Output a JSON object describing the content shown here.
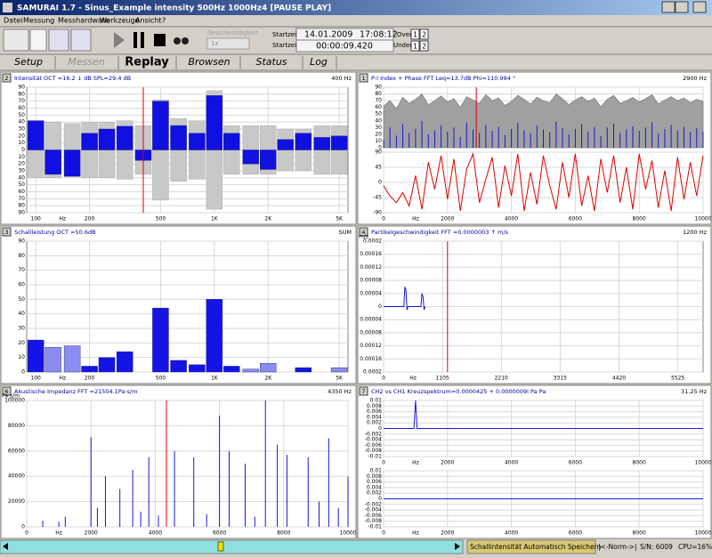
{
  "window_title": "SAMURAI 1.7 - Sinus_Example intensity 500Hz 1000Hz4 [PAUSE PLAY]",
  "menu": [
    "Datei",
    "Messung",
    "Messhardware",
    "Werkzeuge",
    "Ansicht",
    "?"
  ],
  "toolbar": {
    "speed_label": "Geschwindigkeit",
    "speed": "1x",
    "start_label": "Startzeit",
    "start_date": "14.01.2009",
    "start_time": "17:08:12",
    "elapsed_label": "Startzeit",
    "elapsed": "00:00:09.420",
    "over": {
      "label": "Over",
      "buttons": [
        "1",
        "2"
      ]
    },
    "under": {
      "label": "Under",
      "buttons": [
        "1",
        "2"
      ]
    }
  },
  "tabs": [
    "Setup",
    "Messen",
    "Replay",
    "Browsen",
    "Status",
    "Log"
  ],
  "active_tab": 2,
  "disabled_tab": 1,
  "panels": [
    {
      "number": "2",
      "title": "Intensität OCT =16.2 ↓ dB SPL=29.4 dB",
      "right_label": "400 Hz",
      "charts": [
        {
          "type": "bar",
          "xlog": true,
          "xlim": [
            89,
            5600
          ],
          "xticks": [
            100,
            200,
            500,
            {
              "value": 1000,
              "label": "1K"
            },
            {
              "value": 2000,
              "label": "2K"
            },
            {
              "value": 5000,
              "label": "5K"
            }
          ],
          "x_unit": "Hz",
          "ylim": [
            -90,
            90
          ],
          "yticks": [
            90,
            80,
            70,
            60,
            50,
            40,
            30,
            20,
            10,
            0,
            {
              "value": -10,
              "label": "10"
            },
            {
              "value": -20,
              "label": "20"
            },
            {
              "value": -30,
              "label": "30"
            },
            {
              "value": -40,
              "label": "40"
            },
            {
              "value": -50,
              "label": "50"
            },
            {
              "value": -60,
              "label": "60"
            },
            {
              "value": -70,
              "label": "70"
            },
            {
              "value": -80,
              "label": "80"
            },
            {
              "value": -90,
              "label": "90"
            }
          ],
          "grid": true,
          "cursor": 400,
          "x": [
            100,
            125,
            160,
            200,
            250,
            315,
            400,
            500,
            630,
            800,
            1000,
            1250,
            1600,
            2000,
            2500,
            3150,
            4000,
            5000
          ],
          "series": [
            {
              "style": "symmetric_bars",
              "color": "#c8c8c8",
              "values": [
                40,
                40,
                38,
                40,
                40,
                42,
                35,
                72,
                45,
                42,
                85,
                35,
                35,
                35,
                30,
                30,
                35,
                35
              ]
            },
            {
              "style": "bars",
              "color": "#1010e0",
              "values": [
                42,
                -35,
                -38,
                24,
                30,
                34,
                -15,
                70,
                35,
                24,
                78,
                24,
                -20,
                -28,
                15,
                24,
                18,
                20
              ]
            }
          ]
        }
      ]
    },
    {
      "number": "1",
      "title": "P-I Index + Phase FFT  Leq=13.7dB Phi=110.994 °",
      "right_label": "2900 Hz",
      "charts": [
        {
          "type": "line",
          "xlim": [
            0,
            10000
          ],
          "xticks": [
            0,
            2000,
            4000,
            6000,
            8000,
            10000
          ],
          "show_xticks": false,
          "ylim": [
            0,
            90
          ],
          "yticks": [
            90,
            80,
            70,
            60,
            50,
            40,
            30,
            20,
            10,
            0
          ],
          "grid": true,
          "cursor": 2900,
          "x": [
            0,
            200,
            400,
            600,
            800,
            1000,
            1200,
            1400,
            1600,
            1800,
            2000,
            2200,
            2400,
            2600,
            2800,
            3000,
            3200,
            3400,
            3600,
            3800,
            4000,
            4200,
            4400,
            4600,
            4800,
            5000,
            5200,
            5400,
            5600,
            5800,
            6000,
            6200,
            6400,
            6600,
            6800,
            7000,
            7200,
            7400,
            7600,
            7800,
            8000,
            8200,
            8400,
            8600,
            8800,
            9000,
            9200,
            9400,
            9600,
            9800,
            10000
          ],
          "series": [
            {
              "style": "area",
              "color": "#a0a0a0",
              "values": [
                62,
                70,
                58,
                75,
                66,
                72,
                80,
                64,
                70,
                77,
                68,
                73,
                60,
                76,
                71,
                66,
                79,
                70,
                74,
                63,
                69,
                78,
                72,
                65,
                75,
                70,
                67,
                80,
                73,
                64,
                71,
                76,
                69,
                74,
                61,
                72,
                78,
                66,
                70,
                75,
                68,
                73,
                79,
                65,
                71,
                76,
                70,
                74,
                67,
                72,
                69
              ]
            },
            {
              "style": "stems",
              "color": "#1818d8",
              "values": [
                12,
                30,
                18,
                35,
                22,
                28,
                40,
                20,
                26,
                33,
                24,
                30,
                16,
                38,
                27,
                22,
                34,
                25,
                31,
                19,
                28,
                37,
                26,
                21,
                33,
                27,
                23,
                39,
                29,
                20,
                28,
                35,
                24,
                31,
                17,
                30,
                36,
                22,
                27,
                32,
                25,
                30,
                38,
                21,
                28,
                34,
                26,
                31,
                23,
                29,
                24
              ]
            }
          ]
        },
        {
          "type": "line",
          "xlim": [
            0,
            10000
          ],
          "xticks": [
            0,
            2000,
            4000,
            6000,
            8000,
            10000
          ],
          "x_unit": "Hz",
          "ylim": [
            -90,
            90
          ],
          "yticks": [
            90,
            45,
            0,
            -45,
            -90
          ],
          "grid": true,
          "x": [
            0,
            200,
            400,
            600,
            800,
            1000,
            1200,
            1400,
            1600,
            1800,
            2000,
            2200,
            2400,
            2600,
            2800,
            3000,
            3200,
            3400,
            3600,
            3800,
            4000,
            4200,
            4400,
            4600,
            4800,
            5000,
            5200,
            5400,
            5600,
            5800,
            6000,
            6200,
            6400,
            6600,
            6800,
            7000,
            7200,
            7400,
            7600,
            7800,
            8000,
            8200,
            8400,
            8600,
            8800,
            9000,
            9200,
            9400,
            9600,
            9800,
            10000
          ],
          "series": [
            {
              "style": "line",
              "color": "#e00000",
              "values": [
                -10,
                -40,
                -60,
                -30,
                -70,
                20,
                -80,
                60,
                -20,
                80,
                -50,
                70,
                -85,
                40,
                85,
                -60,
                10,
                75,
                -75,
                50,
                -40,
                85,
                -85,
                30,
                -65,
                80,
                -10,
                -80,
                60,
                -45,
                85,
                -70,
                20,
                -85,
                70,
                -30,
                80,
                -60,
                45,
                -80,
                85,
                -20,
                65,
                -75,
                35,
                -85,
                75,
                -50,
                60,
                -40,
                80
              ]
            }
          ]
        }
      ]
    },
    {
      "number": "3",
      "title": "Schallleistung OCT =50.6dB",
      "right_label": "SUM",
      "charts": [
        {
          "type": "bar",
          "xlog": true,
          "xlim": [
            89,
            5600
          ],
          "xticks": [
            100,
            200,
            500,
            {
              "value": 1000,
              "label": "1K"
            },
            {
              "value": 2000,
              "label": "2K"
            },
            {
              "value": 5000,
              "label": "5K"
            }
          ],
          "x_unit": "Hz",
          "ylim": [
            0,
            90
          ],
          "yticks": [
            0,
            10,
            20,
            30,
            40,
            50,
            60,
            70,
            80,
            90
          ],
          "grid": true,
          "x": [
            100,
            125,
            160,
            200,
            250,
            315,
            400,
            500,
            630,
            800,
            1000,
            1250,
            1600,
            2000,
            2500,
            3150,
            4000,
            5000
          ],
          "series": [
            {
              "style": "bars",
              "values": [
                22,
                17,
                18,
                4,
                10,
                14,
                0,
                44,
                8,
                5,
                50,
                4,
                2,
                6,
                0,
                3,
                0,
                3
              ],
              "colors": [
                "#1414e6",
                "#8c8cf0",
                "#8c8cf0",
                "#1414e6",
                "#1414e6",
                "#1414e6",
                "#1414e6",
                "#1414e6",
                "#1414e6",
                "#1414e6",
                "#1414e6",
                "#1414e6",
                "#8c8cf0",
                "#8c8cf0",
                "#1414e6",
                "#1414e6",
                "#1414e6",
                "#8c8cf0"
              ]
            }
          ]
        }
      ]
    },
    {
      "number": "4",
      "title": "Partikelgeschwindigkeit FFT =0.0000003 ↑ m/s",
      "right_label": "1200 Hz",
      "charts": [
        {
          "type": "line",
          "xlim": [
            0,
            6000
          ],
          "xticks": [
            0,
            1105,
            2210,
            3315,
            4420,
            5525
          ],
          "x_unit": "Hz",
          "y_unit": "m/s",
          "ylim": [
            -0.0002,
            0.0002
          ],
          "yticks": [
            0.0002,
            0.00016,
            0.00012,
            8e-05,
            4e-05,
            0,
            {
              "value": -4e-05,
              "label": "0.00004"
            },
            {
              "value": -8e-05,
              "label": "0.00008"
            },
            {
              "value": -0.00012,
              "label": "0.00012"
            },
            {
              "value": -0.00016,
              "label": "0.00016"
            },
            {
              "value": -0.0002,
              "label": "0.0002"
            }
          ],
          "grid": true,
          "cursor": 1200,
          "x": [
            0,
            100,
            200,
            300,
            380,
            400,
            420,
            440,
            460,
            480,
            700,
            720,
            740,
            760,
            780
          ],
          "series": [
            {
              "style": "line",
              "color": "#1818d8",
              "values": [
                0,
                0,
                0,
                0,
                0,
                6e-05,
                5e-05,
                -1e-05,
                0,
                0,
                0,
                4e-05,
                3e-05,
                -1e-05,
                0
              ]
            }
          ]
        }
      ]
    },
    {
      "number": "6",
      "title": "Akustische Impedanz FFT =21504.1Pa·s/m",
      "right_label": "4350 Hz",
      "charts": [
        {
          "type": "line",
          "xlim": [
            0,
            10000
          ],
          "xticks": [
            0,
            2000,
            4000,
            6000,
            8000,
            10000
          ],
          "x_unit": "Hz",
          "y_unit": "Pa·s/m",
          "ylim": [
            0,
            100000
          ],
          "yticks": [
            0,
            20000,
            40000,
            60000,
            80000,
            100000
          ],
          "grid": true,
          "cursor": 4350,
          "x": [
            500,
            1000,
            1200,
            2000,
            2200,
            2450,
            2900,
            3300,
            3550,
            3800,
            4100,
            4600,
            5200,
            5600,
            6000,
            6300,
            6800,
            7100,
            7430,
            7800,
            8100,
            8760,
            9100,
            9400,
            9700,
            10000
          ],
          "series": [
            {
              "style": "stems",
              "color": "#1818d8",
              "values": [
                5000,
                4000,
                8000,
                71000,
                15000,
                40000,
                30000,
                45000,
                12000,
                55000,
                9000,
                60000,
                55000,
                10000,
                88000,
                60000,
                50000,
                8000,
                100000,
                65000,
                57000,
                55000,
                20000,
                70000,
                15000,
                40000
              ]
            }
          ]
        }
      ]
    },
    {
      "number": "7",
      "title": "CH2 vs CH1 Kreuzspektrum=0.0000425 + 0.0000009i Pa Pa",
      "right_label": "31.25 Hz",
      "charts": [
        {
          "type": "line",
          "xlim": [
            0,
            10000
          ],
          "xticks": [
            0,
            2000,
            4000,
            6000,
            8000,
            10000
          ],
          "x_unit": "Hz",
          "ylim": [
            -0.01,
            0.01
          ],
          "yticks": [
            0.01,
            0.008,
            0.006,
            0.004,
            0.002,
            0,
            -0.002,
            -0.004,
            -0.006,
            -0.008,
            -0.01
          ],
          "grid": true,
          "x": [
            0,
            800,
            950,
            1000,
            1050,
            1200,
            10000
          ],
          "series": [
            {
              "style": "line",
              "color": "#1818d8",
              "values": [
                0,
                0,
                0,
                0.01,
                0,
                0,
                0
              ]
            }
          ]
        },
        {
          "type": "line",
          "xlim": [
            0,
            10000
          ],
          "xticks": [
            0,
            2000,
            4000,
            6000,
            8000,
            10000
          ],
          "x_unit": "Hz",
          "ylim": [
            -0.01,
            0.01
          ],
          "yticks": [
            0.01,
            0.008,
            0.006,
            0.004,
            0.002,
            0,
            -0.002,
            -0.004,
            -0.006,
            -0.008,
            -0.01
          ],
          "grid": true,
          "x": [
            0,
            10000
          ],
          "series": [
            {
              "style": "line",
              "color": "#1818d8",
              "values": [
                0,
                0
              ]
            }
          ]
        }
      ]
    }
  ],
  "status_bar": {
    "message": "Schallintensität Automatisch Speichern",
    "norm": "|<-Norm->|",
    "sn": "S/N: 6009",
    "cpu": "CPU=16%"
  }
}
